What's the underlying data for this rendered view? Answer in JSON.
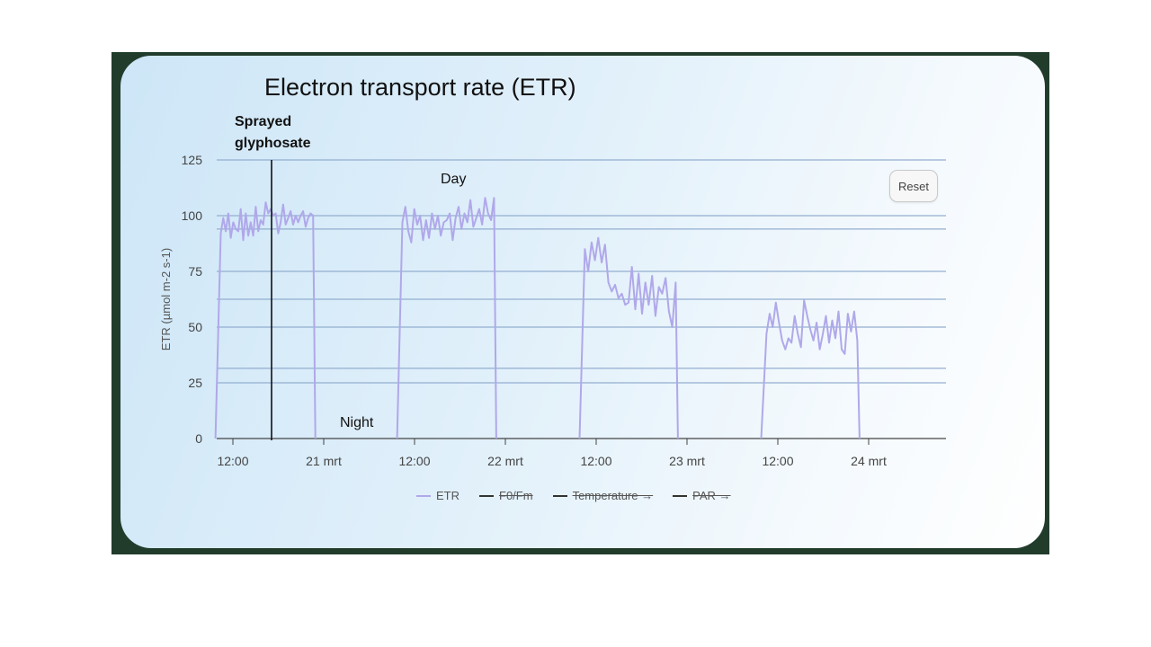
{
  "chart_data": {
    "type": "line",
    "title": "Electron transport rate (ETR)",
    "ylabel": "ETR (µmol m-2 s-1)",
    "xlabel": "",
    "ylim": [
      0,
      125
    ],
    "yticks": [
      "0",
      "25",
      "50",
      "75",
      "100",
      "125"
    ],
    "xticks": [
      "12:00",
      "21 mrt",
      "12:00",
      "22 mrt",
      "12:00",
      "23 mrt",
      "12:00",
      "24 mrt"
    ],
    "grid": true,
    "legend_position": "bottom",
    "series": [
      {
        "name": "ETR",
        "color": "#b0a8ea",
        "x_hours": [
          -2,
          -1.8,
          -1.5,
          -1.2,
          -1,
          -0.8,
          -0.6,
          -0.4,
          -0.2,
          0,
          0.2,
          0.4,
          0.6,
          0.8,
          1,
          1.2,
          1.4,
          1.6,
          1.8,
          2,
          2.2,
          2.4,
          2.6,
          2.8,
          3,
          3.2,
          3.4,
          3.6,
          3.8,
          4,
          4.2,
          4.4,
          4.6,
          4.8,
          5,
          5.2,
          5.4,
          5.6,
          5.8,
          6,
          6.2,
          6.4,
          6.6,
          6.8,
          7,
          7.2,
          7.4,
          7.6,
          7.8,
          8,
          8.2,
          8.4,
          8.6,
          8.9,
          9.1,
          9.3,
          9.6,
          9.8,
          10,
          10.2,
          10.4,
          10.6,
          10.8,
          11,
          11.2,
          11.4,
          11.6,
          11.8,
          12
        ],
        "segments": [
          {
            "x": [
              0.1,
              0.3,
              0.5,
              0.7,
              0.9,
              1.1,
              1.3,
              1.5,
              1.7,
              1.9,
              2.1,
              2.3,
              2.5,
              2.7,
              2.9,
              3.1,
              3.3,
              3.5,
              3.7,
              3.9,
              4.1,
              4.3,
              4.5,
              4.7,
              4.9,
              5.1,
              5.3,
              5.5,
              5.7,
              5.9,
              6.1,
              6.3,
              6.5,
              6.7,
              6.9,
              7.1,
              7.3,
              7.5,
              7.7,
              7.9,
              8.1,
              8.3,
              8.5,
              8.7,
              8.9,
              9.1,
              9.3,
              9.5,
              9.7,
              9.9,
              10.1,
              10.3
            ],
            "y": [
              0,
              95,
              92,
              100,
              92,
              102,
              90,
              97,
              94,
              93,
              103,
              89,
              101,
              91,
              97,
              91,
              104,
              93,
              98,
              96,
              107,
              101,
              103,
              100,
              101,
              92,
              97,
              105,
              96,
              98,
              103,
              95,
              99,
              97,
              100,
              96,
              100,
              102,
              95,
              99,
              103,
              97,
              101,
              100,
              96,
              101,
              100,
              98,
              101,
              101,
              100,
              0
            ]
          }
        ]
      },
      {
        "name": "F0/Fm",
        "color": "#333333",
        "values": []
      },
      {
        "name": "Temperature →",
        "color": "#333333",
        "values": []
      },
      {
        "name": "PAR →",
        "color": "#333333",
        "values": []
      }
    ],
    "annotations": [
      "Sprayed",
      "glyphosate",
      "Day",
      "Night"
    ]
  },
  "labels": {
    "sprayed_line1": "Sprayed",
    "sprayed_line2": "glyphosate",
    "day": "Day",
    "night": "Night",
    "reset": "Reset"
  }
}
